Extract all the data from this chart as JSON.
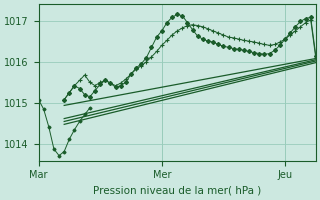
{
  "xlabel": "Pression niveau de la mer( hPa )",
  "bg_color": "#cce8e0",
  "plot_bg_color": "#cce8e0",
  "grid_color": "#99ccbb",
  "line_color": "#1a5c2a",
  "axis_label_color": "#1a5c2a",
  "tick_label_color": "#1a5c2a",
  "ylim": [
    1013.6,
    1017.4
  ],
  "yticks": [
    1014,
    1015,
    1016,
    1017
  ],
  "day_labels": [
    "Mar",
    "Mer",
    "Jeu"
  ],
  "day_positions": [
    0,
    48,
    96
  ],
  "total_hours": 108,
  "series_wavy": [
    [
      10,
      1015.08
    ],
    [
      12,
      1015.25
    ],
    [
      14,
      1015.42
    ],
    [
      16,
      1015.35
    ],
    [
      18,
      1015.2
    ],
    [
      20,
      1015.15
    ],
    [
      22,
      1015.3
    ],
    [
      24,
      1015.45
    ],
    [
      26,
      1015.55
    ],
    [
      28,
      1015.48
    ],
    [
      30,
      1015.38
    ],
    [
      32,
      1015.42
    ],
    [
      34,
      1015.5
    ],
    [
      36,
      1015.7
    ],
    [
      38,
      1015.85
    ],
    [
      40,
      1015.95
    ],
    [
      42,
      1016.1
    ],
    [
      44,
      1016.35
    ],
    [
      46,
      1016.6
    ],
    [
      48,
      1016.75
    ],
    [
      50,
      1016.95
    ],
    [
      52,
      1017.08
    ],
    [
      54,
      1017.15
    ],
    [
      56,
      1017.12
    ],
    [
      58,
      1016.95
    ],
    [
      60,
      1016.78
    ],
    [
      62,
      1016.62
    ],
    [
      64,
      1016.55
    ],
    [
      66,
      1016.5
    ],
    [
      68,
      1016.48
    ],
    [
      70,
      1016.42
    ],
    [
      72,
      1016.38
    ],
    [
      74,
      1016.35
    ],
    [
      76,
      1016.32
    ],
    [
      78,
      1016.3
    ],
    [
      80,
      1016.28
    ],
    [
      82,
      1016.25
    ],
    [
      84,
      1016.22
    ],
    [
      86,
      1016.2
    ],
    [
      88,
      1016.18
    ],
    [
      90,
      1016.2
    ],
    [
      92,
      1016.28
    ],
    [
      94,
      1016.4
    ],
    [
      96,
      1016.55
    ],
    [
      98,
      1016.7
    ],
    [
      100,
      1016.85
    ],
    [
      102,
      1016.98
    ],
    [
      104,
      1017.05
    ],
    [
      106,
      1017.08
    ],
    [
      108,
      1016.15
    ]
  ],
  "series_cross": [
    [
      10,
      1015.08
    ],
    [
      12,
      1015.25
    ],
    [
      14,
      1015.42
    ],
    [
      16,
      1015.55
    ],
    [
      18,
      1015.68
    ],
    [
      20,
      1015.5
    ],
    [
      22,
      1015.42
    ],
    [
      24,
      1015.5
    ],
    [
      26,
      1015.55
    ],
    [
      28,
      1015.48
    ],
    [
      30,
      1015.42
    ],
    [
      32,
      1015.48
    ],
    [
      34,
      1015.58
    ],
    [
      36,
      1015.7
    ],
    [
      38,
      1015.82
    ],
    [
      40,
      1015.9
    ],
    [
      42,
      1016.0
    ],
    [
      44,
      1016.12
    ],
    [
      46,
      1016.25
    ],
    [
      48,
      1016.4
    ],
    [
      50,
      1016.52
    ],
    [
      52,
      1016.65
    ],
    [
      54,
      1016.75
    ],
    [
      56,
      1016.82
    ],
    [
      58,
      1016.88
    ],
    [
      60,
      1016.9
    ],
    [
      62,
      1016.88
    ],
    [
      64,
      1016.85
    ],
    [
      66,
      1016.8
    ],
    [
      68,
      1016.75
    ],
    [
      70,
      1016.7
    ],
    [
      72,
      1016.65
    ],
    [
      74,
      1016.6
    ],
    [
      76,
      1016.58
    ],
    [
      78,
      1016.55
    ],
    [
      80,
      1016.52
    ],
    [
      82,
      1016.5
    ],
    [
      84,
      1016.48
    ],
    [
      86,
      1016.45
    ],
    [
      88,
      1016.42
    ],
    [
      90,
      1016.4
    ],
    [
      92,
      1016.42
    ],
    [
      94,
      1016.48
    ],
    [
      96,
      1016.55
    ],
    [
      98,
      1016.65
    ],
    [
      100,
      1016.75
    ],
    [
      102,
      1016.85
    ],
    [
      104,
      1016.95
    ],
    [
      106,
      1017.02
    ],
    [
      108,
      1016.08
    ]
  ],
  "series_linear": [
    [
      [
        10,
        1014.94
      ],
      [
        108,
        1016.08
      ]
    ],
    [
      [
        10,
        1014.62
      ],
      [
        108,
        1016.05
      ]
    ],
    [
      [
        10,
        1014.55
      ],
      [
        108,
        1016.02
      ]
    ],
    [
      [
        10,
        1014.48
      ],
      [
        108,
        1015.98
      ]
    ]
  ],
  "series_spike": [
    [
      0,
      1015.08
    ],
    [
      2,
      1014.85
    ],
    [
      4,
      1014.42
    ],
    [
      6,
      1013.88
    ],
    [
      8,
      1013.72
    ],
    [
      10,
      1013.82
    ],
    [
      12,
      1014.12
    ],
    [
      14,
      1014.35
    ],
    [
      16,
      1014.55
    ],
    [
      18,
      1014.72
    ],
    [
      20,
      1014.88
    ]
  ]
}
